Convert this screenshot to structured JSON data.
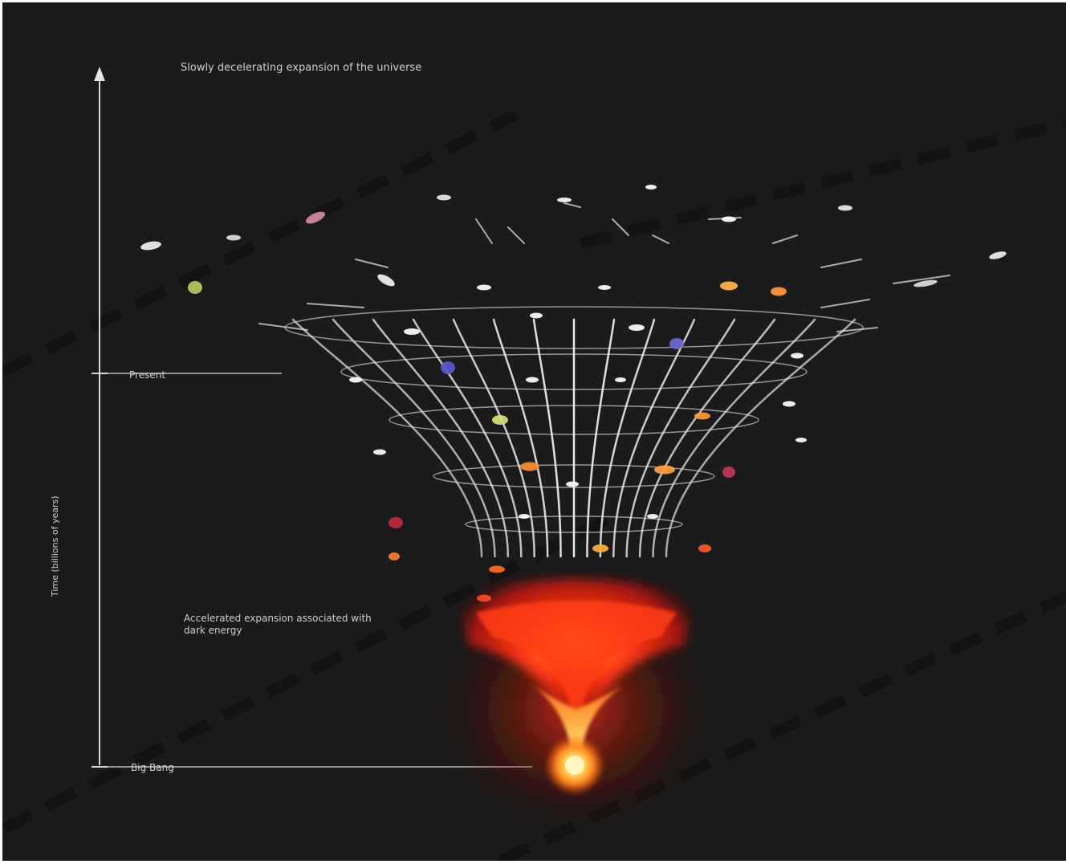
{
  "diagram": {
    "title": "Slowly decelerating expansion of the universe",
    "present_label": "Present",
    "big_bang_label": "Big Bang",
    "note": "Accelerated expansion associated with dark energy",
    "axis_label": "Time (billions of years)"
  },
  "colors": {
    "background": "#1b1b1b",
    "frame_border": "#ffffff",
    "grid_lines": "#e8e8e8",
    "axis": "#d8d8d8",
    "hot_core": "#ffe36a",
    "hot_mid": "#ff7a18",
    "hot_outer": "#d51a10"
  },
  "icons": {
    "axis_arrow": "up-arrow-icon",
    "galaxies": "galaxy-icon"
  }
}
